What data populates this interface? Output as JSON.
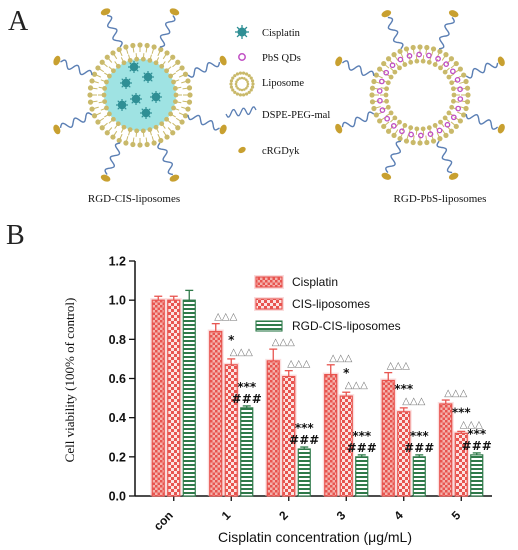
{
  "panel_a": {
    "letter": "A",
    "legend": [
      {
        "icon": "cisplatin-icon",
        "label": "Cisplatin"
      },
      {
        "icon": "pbs-qd-icon",
        "label": "PbS QDs"
      },
      {
        "icon": "liposome-icon",
        "label": "Liposome"
      },
      {
        "icon": "dspe-peg-mal-icon",
        "label": "DSPE-PEG-mal"
      },
      {
        "icon": "crgdyk-icon",
        "label": "cRGDyk"
      }
    ],
    "caption_left": "RGD-CIS-liposomes",
    "caption_right": "RGD-PbS-liposomes",
    "colors": {
      "lipid_head": "#c9b96a",
      "peg": "#5b7fb4",
      "crgdyk": "#c8a030",
      "cisplatin": "#2f8f95",
      "cisplatin_bg": "#9fe3e3",
      "pbs": "#c04fc4"
    }
  },
  "panel_b": {
    "letter": "B",
    "chart_data": {
      "type": "bar",
      "categories": [
        "con",
        "1",
        "2",
        "3",
        "4",
        "5"
      ],
      "series": [
        {
          "name": "Cisplatin",
          "values": [
            1.0,
            0.84,
            0.69,
            0.62,
            0.59,
            0.47
          ],
          "errors": [
            0.02,
            0.04,
            0.06,
            0.05,
            0.04,
            0.02
          ],
          "color": "#e8544f"
        },
        {
          "name": "CIS-liposomes",
          "values": [
            1.0,
            0.67,
            0.61,
            0.51,
            0.43,
            0.32
          ],
          "errors": [
            0.02,
            0.03,
            0.03,
            0.02,
            0.02,
            0.01
          ],
          "color": "#e8544f"
        },
        {
          "name": "RGD-CIS-liposomes",
          "values": [
            1.0,
            0.45,
            0.24,
            0.2,
            0.2,
            0.21
          ],
          "errors": [
            0.05,
            0.01,
            0.01,
            0.01,
            0.01,
            0.01
          ],
          "color": "#2f7a4a"
        }
      ],
      "xlabel": "Cisplatin  concentration (μg/mL)",
      "ylabel": "Cell  viability  (100% of control)",
      "ylim": [
        0.0,
        1.2
      ],
      "yticks": [
        "0.0",
        "0.2",
        "0.4",
        "0.6",
        "0.8",
        "1.0",
        "1.2"
      ],
      "legend_position": "top-right",
      "annotations": [
        {
          "category": "1",
          "series": 0,
          "text": "△△△"
        },
        {
          "category": "1",
          "series": 1,
          "text": "△△△"
        },
        {
          "category": "1",
          "series": 1,
          "text": "*"
        },
        {
          "category": "1",
          "series": 2,
          "text": "###"
        },
        {
          "category": "1",
          "series": 2,
          "text": "***"
        },
        {
          "category": "2",
          "series": 0,
          "text": "△△△"
        },
        {
          "category": "2",
          "series": 1,
          "text": "△△△"
        },
        {
          "category": "2",
          "series": 2,
          "text": "###"
        },
        {
          "category": "2",
          "series": 2,
          "text": "***"
        },
        {
          "category": "3",
          "series": 0,
          "text": "△△△"
        },
        {
          "category": "3",
          "series": 1,
          "text": "△△△"
        },
        {
          "category": "3",
          "series": 1,
          "text": "*"
        },
        {
          "category": "3",
          "series": 2,
          "text": "###"
        },
        {
          "category": "3",
          "series": 2,
          "text": "***"
        },
        {
          "category": "4",
          "series": 0,
          "text": "△△△"
        },
        {
          "category": "4",
          "series": 1,
          "text": "△△△"
        },
        {
          "category": "4",
          "series": 1,
          "text": "***"
        },
        {
          "category": "4",
          "series": 2,
          "text": "###"
        },
        {
          "category": "4",
          "series": 2,
          "text": "***"
        },
        {
          "category": "5",
          "series": 0,
          "text": "△△△"
        },
        {
          "category": "5",
          "series": 1,
          "text": "△△△"
        },
        {
          "category": "5",
          "series": 1,
          "text": "***"
        },
        {
          "category": "5",
          "series": 2,
          "text": "###"
        },
        {
          "category": "5",
          "series": 2,
          "text": "***"
        }
      ]
    }
  }
}
